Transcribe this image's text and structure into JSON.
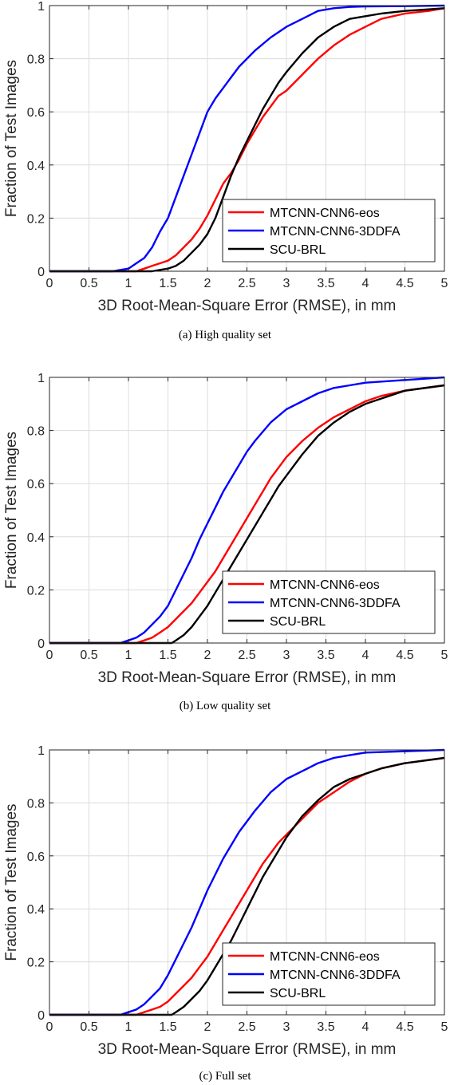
{
  "chart_data": [
    {
      "type": "line",
      "caption": "(a) High quality set",
      "xlabel": "3D Root-Mean-Square Error (RMSE), in mm",
      "ylabel": "Fraction of Test Images",
      "xlim": [
        0,
        5
      ],
      "ylim": [
        0,
        1
      ],
      "xticks": [
        "0",
        "0.5",
        "1",
        "1.5",
        "2",
        "2.5",
        "3",
        "3.5",
        "4",
        "4.5",
        "5"
      ],
      "yticks": [
        "0",
        "0.2",
        "0.4",
        "0.6",
        "0.8",
        "1"
      ],
      "grid": true,
      "legend_position": "bottom-right",
      "series": [
        {
          "name": "MTCNN-CNN6-eos",
          "color": "#ff0000",
          "x": [
            0,
            1.1,
            1.2,
            1.3,
            1.4,
            1.5,
            1.6,
            1.7,
            1.8,
            1.9,
            2.0,
            2.1,
            2.2,
            2.3,
            2.4,
            2.5,
            2.6,
            2.7,
            2.8,
            2.9,
            3.0,
            3.2,
            3.4,
            3.6,
            3.8,
            4.0,
            4.2,
            4.5,
            4.8,
            5.0
          ],
          "y": [
            0,
            0,
            0.01,
            0.02,
            0.03,
            0.04,
            0.06,
            0.09,
            0.12,
            0.16,
            0.21,
            0.27,
            0.33,
            0.37,
            0.42,
            0.48,
            0.53,
            0.58,
            0.62,
            0.66,
            0.68,
            0.74,
            0.8,
            0.85,
            0.89,
            0.92,
            0.95,
            0.97,
            0.98,
            0.99
          ]
        },
        {
          "name": "MTCNN-CNN6-3DDFA",
          "color": "#0000ff",
          "x": [
            0,
            0.8,
            0.9,
            1.0,
            1.1,
            1.2,
            1.3,
            1.4,
            1.5,
            1.6,
            1.7,
            1.8,
            1.9,
            2.0,
            2.1,
            2.2,
            2.3,
            2.4,
            2.5,
            2.6,
            2.8,
            3.0,
            3.2,
            3.4,
            3.6,
            3.8,
            4.0,
            4.5,
            5.0
          ],
          "y": [
            0,
            0,
            0.005,
            0.01,
            0.03,
            0.05,
            0.09,
            0.15,
            0.2,
            0.28,
            0.36,
            0.44,
            0.52,
            0.6,
            0.65,
            0.69,
            0.73,
            0.77,
            0.8,
            0.83,
            0.88,
            0.92,
            0.95,
            0.98,
            0.99,
            0.995,
            0.997,
            0.998,
            1.0
          ]
        },
        {
          "name": "SCU-BRL",
          "color": "#000000",
          "x": [
            0,
            1.3,
            1.4,
            1.5,
            1.6,
            1.7,
            1.8,
            1.9,
            2.0,
            2.1,
            2.2,
            2.3,
            2.4,
            2.5,
            2.6,
            2.7,
            2.8,
            2.9,
            3.0,
            3.2,
            3.4,
            3.6,
            3.8,
            4.0,
            4.2,
            4.5,
            5.0
          ],
          "y": [
            0,
            0,
            0.005,
            0.01,
            0.02,
            0.04,
            0.07,
            0.1,
            0.14,
            0.2,
            0.28,
            0.36,
            0.43,
            0.49,
            0.55,
            0.61,
            0.66,
            0.71,
            0.75,
            0.82,
            0.88,
            0.92,
            0.95,
            0.96,
            0.97,
            0.98,
            0.99
          ]
        }
      ]
    },
    {
      "type": "line",
      "caption": "(b) Low quality set",
      "xlabel": "3D Root-Mean-Square Error (RMSE), in mm",
      "ylabel": "Fraction of Test Images",
      "xlim": [
        0,
        5
      ],
      "ylim": [
        0,
        1
      ],
      "xticks": [
        "0",
        "0.5",
        "1",
        "1.5",
        "2",
        "2.5",
        "3",
        "3.5",
        "4",
        "4.5",
        "5"
      ],
      "yticks": [
        "0",
        "0.2",
        "0.4",
        "0.6",
        "0.8",
        "1"
      ],
      "grid": true,
      "legend_position": "bottom-right",
      "series": [
        {
          "name": "MTCNN-CNN6-eos",
          "color": "#ff0000",
          "x": [
            0,
            1.1,
            1.2,
            1.3,
            1.4,
            1.5,
            1.6,
            1.7,
            1.8,
            1.9,
            2.0,
            2.1,
            2.2,
            2.3,
            2.4,
            2.5,
            2.6,
            2.7,
            2.8,
            2.9,
            3.0,
            3.2,
            3.4,
            3.6,
            3.8,
            4.0,
            4.2,
            4.5,
            5.0
          ],
          "y": [
            0,
            0,
            0.01,
            0.02,
            0.04,
            0.06,
            0.09,
            0.12,
            0.15,
            0.19,
            0.23,
            0.27,
            0.32,
            0.37,
            0.42,
            0.47,
            0.52,
            0.57,
            0.62,
            0.66,
            0.7,
            0.76,
            0.81,
            0.85,
            0.88,
            0.91,
            0.93,
            0.95,
            0.97
          ]
        },
        {
          "name": "MTCNN-CNN6-3DDFA",
          "color": "#0000ff",
          "x": [
            0,
            0.9,
            1.0,
            1.1,
            1.2,
            1.3,
            1.4,
            1.5,
            1.6,
            1.7,
            1.8,
            1.9,
            2.0,
            2.1,
            2.2,
            2.3,
            2.4,
            2.5,
            2.6,
            2.8,
            3.0,
            3.2,
            3.4,
            3.6,
            3.8,
            4.0,
            4.5,
            5.0
          ],
          "y": [
            0,
            0,
            0.01,
            0.02,
            0.04,
            0.07,
            0.1,
            0.14,
            0.2,
            0.26,
            0.32,
            0.39,
            0.45,
            0.51,
            0.57,
            0.62,
            0.67,
            0.72,
            0.76,
            0.83,
            0.88,
            0.91,
            0.94,
            0.96,
            0.97,
            0.98,
            0.99,
            1.0
          ]
        },
        {
          "name": "SCU-BRL",
          "color": "#000000",
          "x": [
            0,
            1.55,
            1.6,
            1.7,
            1.8,
            1.9,
            2.0,
            2.1,
            2.2,
            2.3,
            2.4,
            2.5,
            2.6,
            2.7,
            2.8,
            2.9,
            3.0,
            3.2,
            3.4,
            3.6,
            3.8,
            4.0,
            4.2,
            4.5,
            5.0
          ],
          "y": [
            0,
            0,
            0.01,
            0.03,
            0.06,
            0.1,
            0.14,
            0.19,
            0.24,
            0.29,
            0.34,
            0.39,
            0.44,
            0.49,
            0.54,
            0.59,
            0.63,
            0.71,
            0.78,
            0.83,
            0.87,
            0.9,
            0.92,
            0.95,
            0.97
          ]
        }
      ]
    },
    {
      "type": "line",
      "caption": "(c) Full set",
      "xlabel": "3D Root-Mean-Square Error (RMSE), in mm",
      "ylabel": "Fraction of Test Images",
      "xlim": [
        0,
        5
      ],
      "ylim": [
        0,
        1
      ],
      "xticks": [
        "0",
        "0.5",
        "1",
        "1.5",
        "2",
        "2.5",
        "3",
        "3.5",
        "4",
        "4.5",
        "5"
      ],
      "yticks": [
        "0",
        "0.2",
        "0.4",
        "0.6",
        "0.8",
        "1"
      ],
      "grid": true,
      "legend_position": "bottom-right",
      "series": [
        {
          "name": "MTCNN-CNN6-eos",
          "color": "#ff0000",
          "x": [
            0,
            1.1,
            1.2,
            1.3,
            1.4,
            1.5,
            1.6,
            1.7,
            1.8,
            1.9,
            2.0,
            2.1,
            2.2,
            2.3,
            2.4,
            2.5,
            2.6,
            2.7,
            2.8,
            2.9,
            3.0,
            3.2,
            3.4,
            3.6,
            3.8,
            4.0,
            4.2,
            4.5,
            5.0
          ],
          "y": [
            0,
            0,
            0.01,
            0.02,
            0.03,
            0.05,
            0.08,
            0.11,
            0.14,
            0.18,
            0.22,
            0.27,
            0.32,
            0.37,
            0.42,
            0.47,
            0.52,
            0.57,
            0.61,
            0.65,
            0.68,
            0.74,
            0.8,
            0.84,
            0.88,
            0.91,
            0.93,
            0.95,
            0.97
          ]
        },
        {
          "name": "MTCNN-CNN6-3DDFA",
          "color": "#0000ff",
          "x": [
            0,
            0.9,
            1.0,
            1.1,
            1.2,
            1.3,
            1.4,
            1.5,
            1.6,
            1.7,
            1.8,
            1.9,
            2.0,
            2.1,
            2.2,
            2.3,
            2.4,
            2.5,
            2.6,
            2.8,
            3.0,
            3.2,
            3.4,
            3.6,
            3.8,
            4.0,
            4.5,
            5.0
          ],
          "y": [
            0,
            0,
            0.01,
            0.02,
            0.04,
            0.07,
            0.1,
            0.15,
            0.21,
            0.27,
            0.33,
            0.4,
            0.47,
            0.53,
            0.59,
            0.64,
            0.69,
            0.73,
            0.77,
            0.84,
            0.89,
            0.92,
            0.95,
            0.97,
            0.98,
            0.99,
            0.995,
            1.0
          ]
        },
        {
          "name": "SCU-BRL",
          "color": "#000000",
          "x": [
            0,
            1.55,
            1.6,
            1.7,
            1.8,
            1.9,
            2.0,
            2.1,
            2.2,
            2.3,
            2.4,
            2.5,
            2.6,
            2.7,
            2.8,
            2.9,
            3.0,
            3.2,
            3.4,
            3.6,
            3.8,
            4.0,
            4.2,
            4.5,
            5.0
          ],
          "y": [
            0,
            0,
            0.01,
            0.03,
            0.06,
            0.09,
            0.13,
            0.18,
            0.23,
            0.28,
            0.34,
            0.4,
            0.46,
            0.52,
            0.57,
            0.62,
            0.67,
            0.75,
            0.81,
            0.86,
            0.89,
            0.91,
            0.93,
            0.95,
            0.97
          ]
        }
      ]
    }
  ]
}
